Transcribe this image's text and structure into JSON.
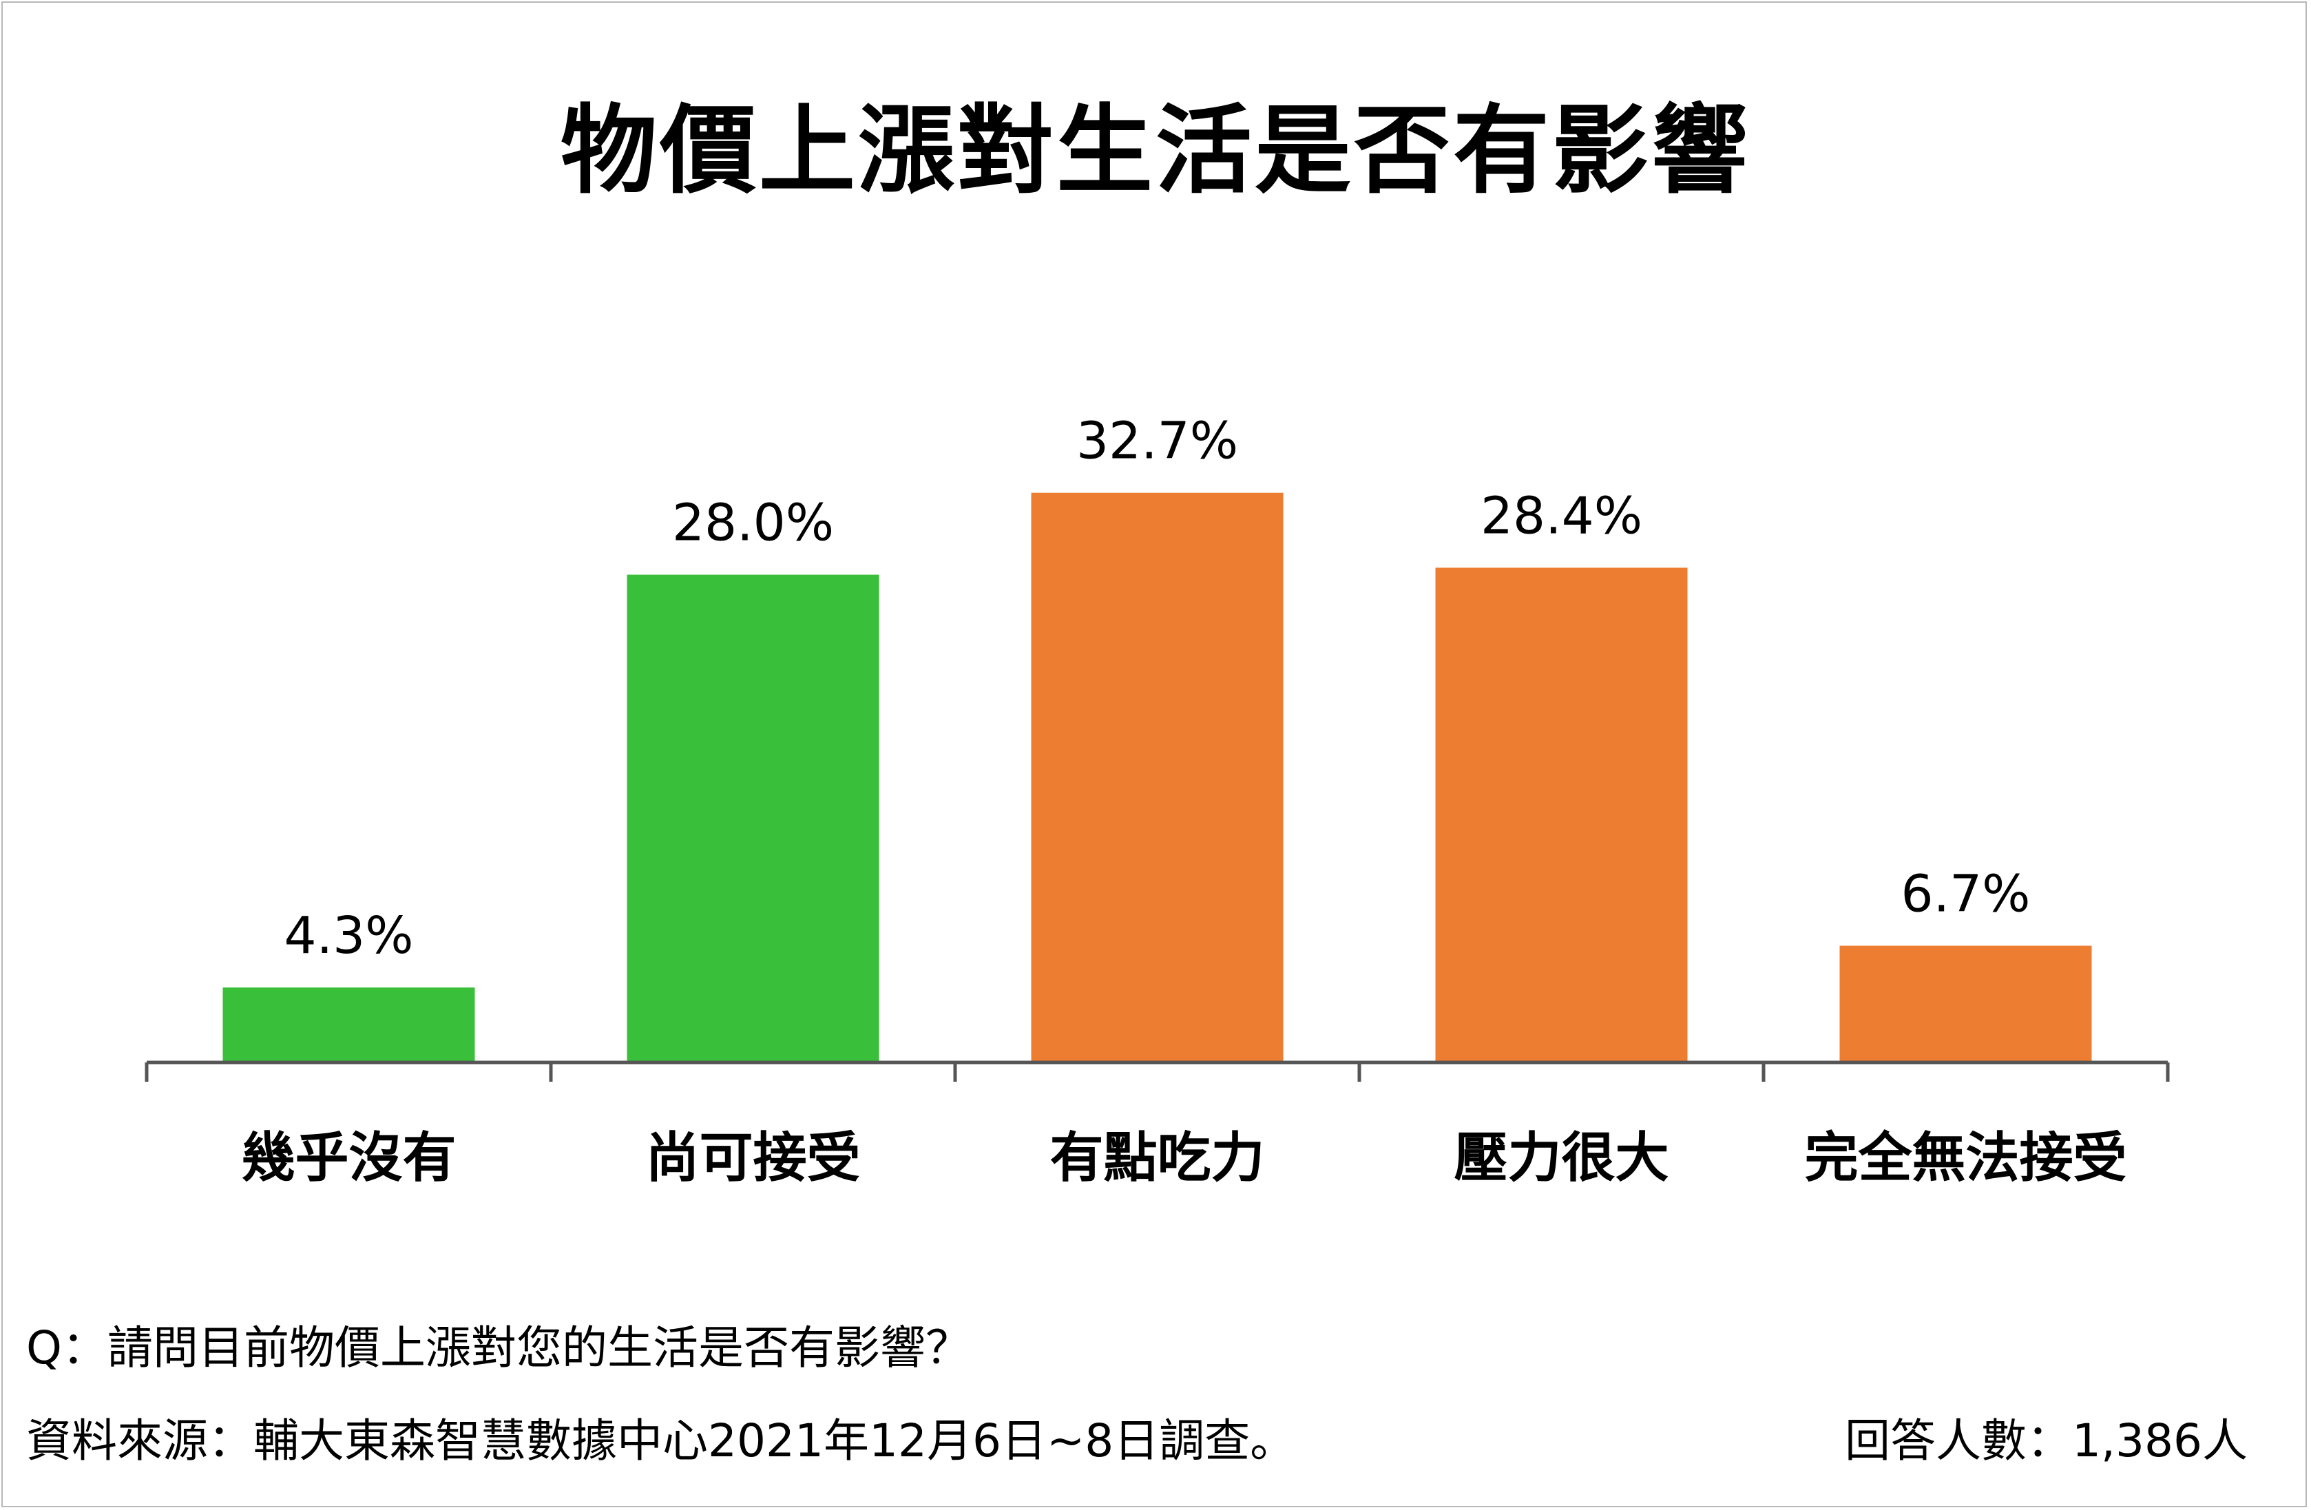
{
  "title": "物價上漲對生活是否有影響",
  "footer": {
    "question": "Q：請問目前物價上漲對您的生活是否有影響？",
    "source": "資料來源：輔大東森智慧數據中心2021年12月6日~8日調查。",
    "respondents": "回答人數：1,386人"
  },
  "colors": {
    "positive": "#39bf39",
    "negative": "#ed7d31",
    "axis": "#555555"
  },
  "chart_data": {
    "type": "bar",
    "title": "物價上漲對生活是否有影響",
    "xlabel": "",
    "ylabel": "",
    "ylim": [
      0,
      35
    ],
    "grid": false,
    "categories": [
      "幾乎沒有",
      "尚可接受",
      "有點吃力",
      "壓力很大",
      "完全無法接受"
    ],
    "values": [
      4.3,
      28.0,
      32.7,
      28.4,
      6.7
    ],
    "data_labels": [
      "4.3%",
      "28.0%",
      "32.7%",
      "28.4%",
      "6.7%"
    ],
    "bar_colors": [
      "#39bf39",
      "#39bf39",
      "#ed7d31",
      "#ed7d31",
      "#ed7d31"
    ]
  }
}
